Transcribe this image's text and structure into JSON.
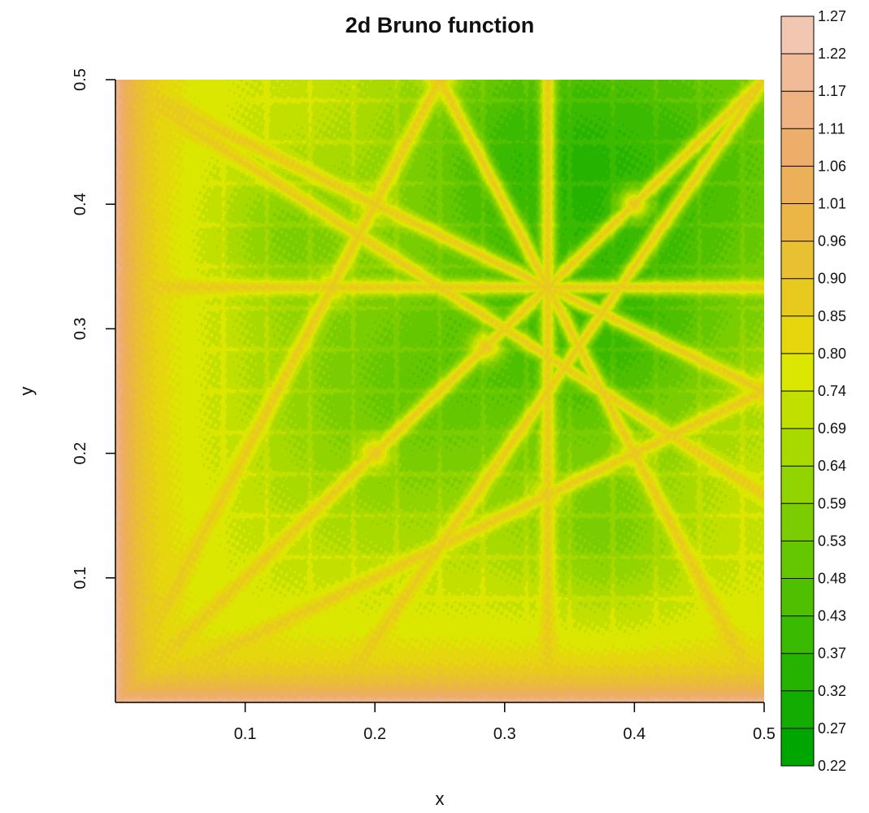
{
  "chart_data": {
    "type": "heatmap",
    "title": "2d Bruno function",
    "xlabel": "x",
    "ylabel": "y",
    "xlim": [
      0,
      0.5
    ],
    "ylim": [
      0,
      0.5
    ],
    "x_ticks": [
      "0.1",
      "0.2",
      "0.3",
      "0.4",
      "0.5"
    ],
    "x_tick_values": [
      0.1,
      0.2,
      0.3,
      0.4,
      0.5
    ],
    "y_ticks": [
      "0.1",
      "0.2",
      "0.3",
      "0.4",
      "0.5"
    ],
    "y_tick_values": [
      0.1,
      0.2,
      0.3,
      0.4,
      0.5
    ],
    "colorbar": {
      "levels": [
        0.22,
        0.27,
        0.32,
        0.37,
        0.43,
        0.48,
        0.53,
        0.59,
        0.64,
        0.69,
        0.74,
        0.8,
        0.85,
        0.9,
        0.96,
        1.01,
        1.06,
        1.11,
        1.17,
        1.22,
        1.27
      ],
      "labels": [
        "0.22",
        "0.27",
        "0.32",
        "0.37",
        "0.43",
        "0.48",
        "0.53",
        "0.59",
        "0.64",
        "0.69",
        "0.74",
        "0.80",
        "0.85",
        "0.90",
        "0.96",
        "1.01",
        "1.06",
        "1.11",
        "1.17",
        "1.22",
        "1.27"
      ],
      "colors": [
        "#00A600",
        "#13AC00",
        "#26B300",
        "#3ABA00",
        "#4FC000",
        "#64C700",
        "#7ACD00",
        "#91D400",
        "#A9DA00",
        "#C2E000",
        "#DBE700",
        "#E6D60E",
        "#E8CA1F",
        "#E9C031",
        "#EBB645",
        "#ECB058",
        "#EEAE6B",
        "#EFB281",
        "#F1BB98",
        "#F2C7B2",
        "#F2F2F2"
      ]
    },
    "features": {
      "ridges": [
        [
          [
            0.0,
            0.5
          ],
          [
            0.5,
            0.25
          ]
        ],
        [
          [
            0.0,
            0.0
          ],
          [
            0.25,
            0.5
          ]
        ],
        [
          [
            0.0,
            0.0
          ],
          [
            0.5,
            0.25
          ]
        ],
        [
          [
            0.0,
            0.0
          ],
          [
            0.5,
            0.5
          ]
        ],
        [
          [
            0.0,
            0.3333
          ],
          [
            0.5,
            0.3333
          ]
        ],
        [
          [
            0.3333,
            0.0
          ],
          [
            0.3333,
            0.5
          ]
        ],
        [
          [
            0.25,
            0.5
          ],
          [
            0.5,
            0.0
          ]
        ],
        [
          [
            0.0,
            0.5
          ],
          [
            0.5,
            0.1667
          ]
        ],
        [
          [
            0.5,
            0.5
          ],
          [
            0.1667,
            0.0
          ]
        ],
        [
          [
            0.5,
            0.25
          ],
          [
            0.3333,
            0.3333
          ]
        ]
      ],
      "nodes": [
        [
          0.2,
          0.4
        ],
        [
          0.4,
          0.2
        ],
        [
          0.3333,
          0.3333
        ],
        [
          0.25,
          0.5
        ],
        [
          0.5,
          0.25
        ],
        [
          0.2,
          0.2
        ],
        [
          0.1667,
          0.3333
        ],
        [
          0.3333,
          0.1667
        ],
        [
          0.4,
          0.4
        ],
        [
          0.2857,
          0.2857
        ]
      ],
      "green_basins": [
        {
          "cx": 0.43,
          "cy": 0.43,
          "r": 0.11,
          "v": 0.45
        },
        {
          "cx": 0.23,
          "cy": 0.25,
          "r": 0.08,
          "v": 0.52
        },
        {
          "cx": 0.38,
          "cy": 0.28,
          "r": 0.06,
          "v": 0.55
        },
        {
          "cx": 0.31,
          "cy": 0.44,
          "r": 0.07,
          "v": 0.55
        },
        {
          "cx": 0.38,
          "cy": 0.13,
          "r": 0.045,
          "v": 0.6
        },
        {
          "cx": 0.13,
          "cy": 0.38,
          "r": 0.04,
          "v": 0.62
        }
      ]
    }
  }
}
